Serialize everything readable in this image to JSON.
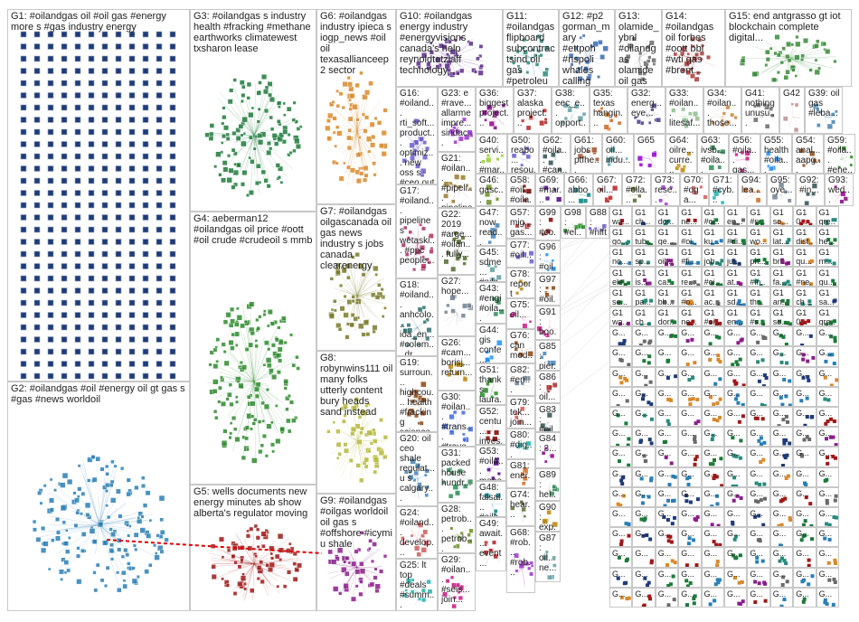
{
  "graph": {
    "background": "#ffffff",
    "edge_color": "#c0c0c0",
    "groups": [
      {
        "id": "G1",
        "label": "G1: #oilandgas oil #oil gas #energy more s #gas industry energy",
        "color": "#1f3b7a",
        "layout": "grid"
      },
      {
        "id": "G2",
        "label": "G2: #oilandgas #oil #energy oil gt gas s #gas #news worldoil",
        "color": "#2a7fb5",
        "layout": "cluster"
      },
      {
        "id": "G3",
        "label": "G3: #oilandgas s industry health #fracking #methane earthworks climatewest txsharon lease",
        "color": "#1d7a3b",
        "layout": "cluster"
      },
      {
        "id": "G4",
        "label": "G4: aeberman12 #oilandgas oil price #oott #oil crude #crudeoil s mmb",
        "color": "#2e8b2e",
        "layout": "cluster"
      },
      {
        "id": "G5",
        "label": "G5: wells documents new energy minutes ab show alberta's regulator moving",
        "color": "#a01818",
        "layout": "cluster"
      },
      {
        "id": "G6",
        "label": "G6: #oilandgas industry ipieca s iogp_news #oil oil texasallianceep 2 sector",
        "color": "#d9892b",
        "layout": "cluster"
      },
      {
        "id": "G7",
        "label": "G7: #oilandgas oilgascanada oil gas news industry s jobs canada clearenergy",
        "color": "#7a7a2a",
        "layout": "cluster"
      },
      {
        "id": "G8",
        "label": "G8: robynwins111 oil many folks utterly content bury heads sand instead",
        "color": "#b5b83a",
        "layout": "cluster"
      },
      {
        "id": "G9",
        "label": "G9: #oilandgas #oilgas worldoil oil gas s #offshore #icymi u shale",
        "color": "#8a1f8a",
        "layout": "cluster"
      },
      {
        "id": "G10",
        "label": "G10: #oilandgas energy industry #energyvisions canada's help reynoldtetzlaff technology...",
        "color": "#5b2a8a",
        "layout": "cluster"
      },
      {
        "id": "G11",
        "label": "G11: #oilandgas flipboard subcontractsind oil gas #petroleum #energy #oil...",
        "color": "#2a8a7a",
        "layout": "cluster"
      },
      {
        "id": "G12",
        "label": "G12: #p2 gorman_mary #ettpoh #nspoli whales calling one's answering including federal",
        "color": "#3a6ab0",
        "layout": "cluster"
      },
      {
        "id": "G13",
        "label": "G13: olamide_ybnl #oilandgas olamide oil gas now repost...",
        "color": "#6a6a6a",
        "layout": "cluster"
      },
      {
        "id": "G14",
        "label": "G14: #oilandgas oil forbes #oott bbl #wti gas #brent...",
        "color": "#aa3a3a",
        "layout": "cluster"
      },
      {
        "id": "G15",
        "label": "G15: end antgrasso gt iot blockchain complete digital...",
        "color": "#3a8a3a",
        "layout": "cluster"
      },
      {
        "id": "G16",
        "label": "G16: #oiland... rti_soft... product... optimiz... new oss s #ceo out #iiot",
        "color": "#6a5acd",
        "layout": "cluster"
      },
      {
        "id": "G17",
        "label": "G17: #oiland... pipeline s wetaski... #ppc people...",
        "color": "#b03060",
        "layout": "cluster"
      },
      {
        "id": "G18",
        "label": "G18: #oiland... anhcolo... ioa_en... #colom... dr...",
        "color": "#2f6f6f",
        "layout": "cluster"
      },
      {
        "id": "G19",
        "label": "G19: surroun... highcou... health #fracking science...",
        "color": "#8b4513",
        "layout": "cluster"
      },
      {
        "id": "G20",
        "label": "G20: oil ceo shale regulat... u s calgary...",
        "color": "#4682b4",
        "layout": "cluster"
      },
      {
        "id": "G21",
        "label": "G21: #oilan... #pipeli... pipeline...",
        "color": "#9a7a2a",
        "layout": "cluster"
      },
      {
        "id": "G22",
        "label": "G22: 2019 #arge... #oilan... fully...",
        "color": "#556b2f",
        "layout": "cluster"
      },
      {
        "id": "G23",
        "label": "G23: e #rave... allarme impre... sindac...",
        "color": "#9932cc",
        "layout": "cluster"
      },
      {
        "id": "G24",
        "label": "G24: #oiland... develop... chacoc...",
        "color": "#cd5c5c",
        "layout": "cluster"
      },
      {
        "id": "G25",
        "label": "G25: lt top #deals #summ...",
        "color": "#20b2aa",
        "layout": "cluster"
      },
      {
        "id": "G26",
        "label": "G26: #cam... borisj... return...",
        "color": "#b8860b",
        "layout": "cluster"
      },
      {
        "id": "G27",
        "label": "G27: hope...",
        "color": "#708090",
        "layout": "cluster"
      },
      {
        "id": "G28",
        "label": "G28: petrob... petrob... exerci...",
        "color": "#6b8e23",
        "layout": "cluster"
      },
      {
        "id": "G29",
        "label": "G29: #oilan... #seis... join...",
        "color": "#c71585",
        "layout": "cluster"
      },
      {
        "id": "G30",
        "label": "G30: #oilan... #trans... #trave...",
        "color": "#4169e1",
        "layout": "cluster"
      },
      {
        "id": "G31",
        "label": "G31: packed house hundr...",
        "color": "#2e8b57",
        "layout": "cluster"
      },
      {
        "id": "G36",
        "label": "G36: biggest project...",
        "color": "#8b008b",
        "layout": "cluster"
      },
      {
        "id": "G37",
        "label": "G37: alaska project...",
        "color": "#b22222",
        "layout": "cluster"
      },
      {
        "id": "G38",
        "label": "G38: eec_e... opport...",
        "color": "#5f9ea0",
        "layout": "cluster"
      },
      {
        "id": "G35",
        "label": "G35: texas hangin...",
        "color": "#d2691e",
        "layout": "cluster"
      },
      {
        "id": "G32",
        "label": "G32: energ... eye...",
        "color": "#483d8b",
        "layout": "cluster"
      },
      {
        "id": "G33",
        "label": "G33: #oilan... litesaf...",
        "color": "#8fbc8f",
        "layout": "cluster"
      },
      {
        "id": "G34",
        "label": "G34: #oilan... those...",
        "color": "#cd853f",
        "layout": "cluster"
      },
      {
        "id": "G41",
        "label": "G41: nothing unusu...",
        "color": "#696969",
        "layout": "cluster"
      },
      {
        "id": "G42",
        "label": "G42",
        "color": "#bc8f8f",
        "layout": "cluster"
      },
      {
        "id": "G39",
        "label": "G39: oil gas #leba...",
        "color": "#4682b4",
        "layout": "cluster"
      },
      {
        "id": "G40",
        "label": "G40: servi... #mar... oil...",
        "color": "#9acd32",
        "layout": "cluster"
      },
      {
        "id": "G50",
        "label": "G50: reabo... resou...",
        "color": "#6a5acd",
        "layout": "cluster"
      },
      {
        "id": "G62",
        "label": "G62: #oila... #can...",
        "color": "#2f4f4f",
        "layout": "cluster"
      },
      {
        "id": "G61",
        "label": "G61: jobs ptfhe...",
        "color": "#a0522d",
        "layout": "cluster"
      },
      {
        "id": "G60",
        "label": "G60: oil... indu...",
        "color": "#5f9ea0",
        "layout": "cluster"
      },
      {
        "id": "G65",
        "label": "G65",
        "color": "#9400d3",
        "layout": "cluster"
      },
      {
        "id": "G64",
        "label": "G64: oilre... curre...",
        "color": "#b8860b",
        "layout": "cluster"
      },
      {
        "id": "G63",
        "label": "G63: ivsb... #oila...",
        "color": "#2e8b57",
        "layout": "cluster"
      },
      {
        "id": "G56",
        "label": "G56: #oila... gas...",
        "color": "#c71585",
        "layout": "cluster"
      },
      {
        "id": "G55",
        "label": "G55: health #oila...",
        "color": "#1e90ff",
        "layout": "cluster"
      },
      {
        "id": "G54",
        "label": "G54: anal... aapg...",
        "color": "#8b4513",
        "layout": "cluster"
      },
      {
        "id": "G59",
        "label": "G59: #oila... #ene...",
        "color": "#228b22",
        "layout": "cluster"
      },
      {
        "id": "G46",
        "label": "G46: gasc... gro...",
        "color": "#6b8e23",
        "layout": "cluster"
      },
      {
        "id": "G58",
        "label": "G58: #oil... #oila...",
        "color": "#800000",
        "layout": "cluster"
      },
      {
        "id": "G69",
        "label": "G69: #mar...",
        "color": "#4b0082",
        "layout": "cluster"
      },
      {
        "id": "G66",
        "label": "G66: abbo...",
        "color": "#008080",
        "layout": "cluster"
      },
      {
        "id": "G67",
        "label": "G67: oil...",
        "color": "#b22222",
        "layout": "cluster"
      },
      {
        "id": "G72",
        "label": "G72: #oila...",
        "color": "#556b2f",
        "layout": "cluster"
      },
      {
        "id": "G73",
        "label": "G73: rese...",
        "color": "#9932cc",
        "layout": "cluster"
      },
      {
        "id": "G70",
        "label": "G70: #og a...",
        "color": "#cd5c5c",
        "layout": "cluster"
      },
      {
        "id": "G71",
        "label": "G71: #cyb...",
        "color": "#20b2aa",
        "layout": "cluster"
      },
      {
        "id": "G94",
        "label": "G94: lea...",
        "color": "#d2691e",
        "layout": "cluster"
      },
      {
        "id": "G95",
        "label": "G95: oye...",
        "color": "#708090",
        "layout": "cluster"
      },
      {
        "id": "G92",
        "label": "G92: #in...",
        "color": "#2f4f4f",
        "layout": "cluster"
      },
      {
        "id": "G93",
        "label": "G93: wed...",
        "color": "#8b008b",
        "layout": "cluster"
      },
      {
        "id": "G47",
        "label": "G47: now read...",
        "color": "#4682b4",
        "layout": "cluster"
      },
      {
        "id": "G57",
        "label": "G57: mig... gas...",
        "color": "#a52a2a",
        "layout": "cluster"
      },
      {
        "id": "G45",
        "label": "G45: sdme... #oila...",
        "color": "#5f9ea0",
        "layout": "cluster"
      },
      {
        "id": "G77",
        "label": "G77: #oil...",
        "color": "#6a5acd",
        "layout": "cluster"
      },
      {
        "id": "G43",
        "label": "G43: #engi #oila...",
        "color": "#2e8b57",
        "layout": "cluster"
      },
      {
        "id": "G78",
        "label": "G78: report #int...",
        "color": "#b8860b",
        "layout": "cluster"
      },
      {
        "id": "G75",
        "label": "G75: oil...",
        "color": "#c71585",
        "layout": "cluster"
      },
      {
        "id": "G44",
        "label": "G44: gis confe...",
        "color": "#1e90ff",
        "layout": "cluster"
      },
      {
        "id": "G76",
        "label": "G76: can mod...",
        "color": "#8b4513",
        "layout": "cluster"
      },
      {
        "id": "G51",
        "label": "G51: thanks laura...",
        "color": "#228b22",
        "layout": "cluster"
      },
      {
        "id": "G52",
        "label": "G52: centu... inves...",
        "color": "#800000",
        "layout": "cluster"
      },
      {
        "id": "G53",
        "label": "G53: #oila... mepe...",
        "color": "#4b0082",
        "layout": "cluster"
      },
      {
        "id": "G48",
        "label": "G48: faisal... #oila...",
        "color": "#008080",
        "layout": "cluster"
      },
      {
        "id": "G49",
        "label": "G49: await... event...",
        "color": "#b22222",
        "layout": "cluster"
      },
      {
        "id": "G74",
        "label": "G74: hear...",
        "color": "#556b2f",
        "layout": "cluster"
      },
      {
        "id": "G68",
        "label": "G68: #rob... #rob...",
        "color": "#9932cc",
        "layout": "cluster"
      },
      {
        "id": "G79",
        "label": "G79: tek... join...",
        "color": "#cd5c5c",
        "layout": "cluster"
      },
      {
        "id": "G80",
        "label": "G80: #dig...",
        "color": "#20b2aa",
        "layout": "cluster"
      },
      {
        "id": "G81",
        "label": "G81: ener...",
        "color": "#d2691e",
        "layout": "cluster"
      },
      {
        "id": "G82",
        "label": "G82: #en...",
        "color": "#708090",
        "layout": "cluster"
      },
      {
        "id": "G83",
        "label": "G83: #oil...",
        "color": "#2f4f4f",
        "layout": "cluster"
      },
      {
        "id": "G84",
        "label": "G84: 3...",
        "color": "#8b008b",
        "layout": "cluster"
      },
      {
        "id": "G85",
        "label": "G85: pier...",
        "color": "#4682b4",
        "layout": "cluster"
      },
      {
        "id": "G86",
        "label": "G86: oil...",
        "color": "#a52a2a",
        "layout": "cluster"
      },
      {
        "id": "G87",
        "label": "G87: oil... ne...",
        "color": "#5f9ea0",
        "layout": "cluster"
      },
      {
        "id": "G88",
        "label": "G88: #nift...",
        "color": "#6a5acd",
        "layout": "cluster"
      },
      {
        "id": "G89",
        "label": "G89: hel...",
        "color": "#2e8b57",
        "layout": "cluster"
      },
      {
        "id": "G90",
        "label": "G90: exp...",
        "color": "#b8860b",
        "layout": "cluster"
      },
      {
        "id": "G91",
        "label": "G91: boo...",
        "color": "#c71585",
        "layout": "cluster"
      },
      {
        "id": "G96",
        "label": "G96: #oil...",
        "color": "#1e90ff",
        "layout": "cluster"
      },
      {
        "id": "G97",
        "label": "G97: #oil...",
        "color": "#8b4513",
        "layout": "cluster"
      },
      {
        "id": "G98",
        "label": "G98: #el...",
        "color": "#228b22",
        "layout": "cluster"
      },
      {
        "id": "G99",
        "label": "G99: #co...",
        "color": "#800000",
        "layout": "cluster"
      }
    ],
    "small_group_prefix": "G1",
    "small_group_labels": [
      "wa...",
      "ch...",
      "dor...",
      "ne...",
      "#oi...",
      "en...",
      "#s...",
      "so...",
      "0...",
      "gre...",
      "go...",
      "tub...",
      "ge...",
      "#oi...",
      "ku...",
      "#di...",
      "wo...",
      "lat...",
      "dist...",
      "he...",
      "no...",
      "sp...",
      "oil...",
      "#fi...",
      "job...",
      "ju...",
      "ph...",
      "bri...",
      "qu...",
      "m...",
      "ele...",
      "is...",
      "ca...",
      "re...",
      "#oi...",
      "at...",
      "#in...",
      "fa...",
      "#ne...",
      "gu...",
      "se...",
      "pa...",
      "bb...",
      "#o...",
      "ac...",
      "sd...",
      "th...",
      "an...",
      "ch...",
      "sa..."
    ],
    "highlight_edge": {
      "from": "G2",
      "to": "G9",
      "color": "#e00000"
    }
  }
}
